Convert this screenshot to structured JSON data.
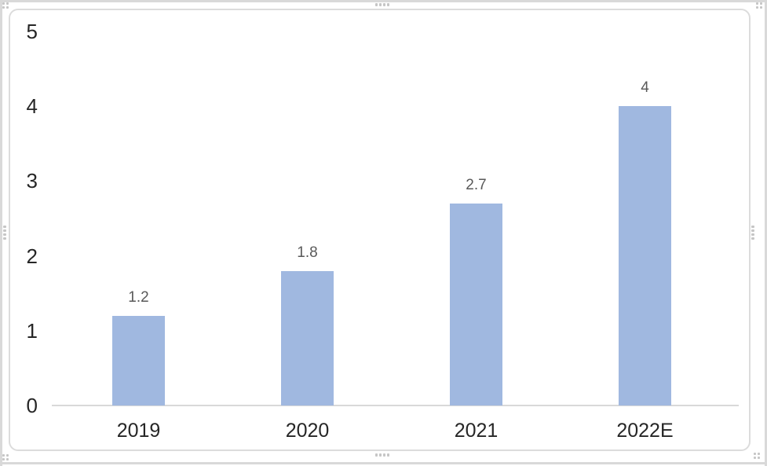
{
  "window": {
    "background": "#ffffff"
  },
  "selection": {
    "frame_color": "#d9d9d9",
    "handle_color": "#c6c6c6"
  },
  "chart_data": {
    "type": "bar",
    "title": "",
    "xlabel": "",
    "ylabel": "",
    "categories": [
      "2019",
      "2020",
      "2021",
      "2022E"
    ],
    "values": [
      1.2,
      1.8,
      2.7,
      4
    ],
    "data_labels": [
      "1.2",
      "1.8",
      "2.7",
      "4"
    ],
    "yticks": [
      0,
      1,
      2,
      3,
      4,
      5
    ],
    "ylim": [
      0,
      5
    ],
    "grid": false,
    "legend": "none",
    "bar_color": "#a0b8e0",
    "data_label_color": "#595959",
    "tick_label_color": "#262626",
    "category_label_color": "#262626",
    "axis_line_color": "#d9d9d9"
  }
}
